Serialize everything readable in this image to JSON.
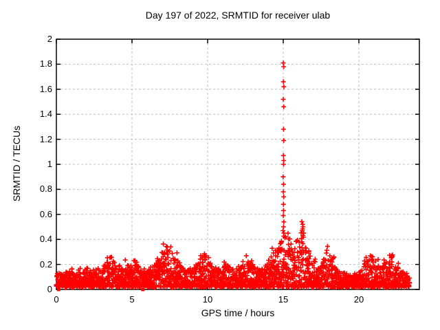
{
  "window": {
    "background": "#ffffff"
  },
  "chart_data": {
    "type": "scatter",
    "title": "Day 197 of 2022, SRMTID for receiver ulab",
    "xlabel": "GPS time / hours",
    "ylabel": "SRMTID / TECUs",
    "xlim": [
      0,
      24
    ],
    "ylim": [
      0,
      2
    ],
    "x_tick_values": [
      0,
      5,
      10,
      15,
      20
    ],
    "x_tick_labels": [
      "0",
      "5",
      "10",
      "15",
      "20"
    ],
    "y_tick_values": [
      0,
      0.2,
      0.4,
      0.6,
      0.8,
      1,
      1.2,
      1.4,
      1.6,
      1.8,
      2
    ],
    "y_tick_labels": [
      "0",
      "0.2",
      "0.4",
      "0.6",
      "0.8",
      "1",
      "1.2",
      "1.4",
      "1.6",
      "1.8",
      "2"
    ],
    "grid": true,
    "grid_style": "dashed",
    "grid_color": "#bfbfbf",
    "border_color": "#000000",
    "text_color": "#000000",
    "legend": "none",
    "series": [
      {
        "name": "srmtid-scatter",
        "marker": "plus",
        "color": "#ff0000",
        "marker_size": 7,
        "x_start": 0.0,
        "x_end": 23.35,
        "point_count": 2600,
        "seed": 197,
        "band_low": 0.02,
        "band_profile": [
          [
            0.0,
            0.13
          ],
          [
            0.3,
            0.12
          ],
          [
            0.8,
            0.15
          ],
          [
            1.2,
            0.13
          ],
          [
            1.6,
            0.17
          ],
          [
            2.0,
            0.15
          ],
          [
            2.4,
            0.13
          ],
          [
            2.8,
            0.16
          ],
          [
            3.2,
            0.2
          ],
          [
            3.6,
            0.28
          ],
          [
            3.9,
            0.2
          ],
          [
            4.2,
            0.17
          ],
          [
            4.6,
            0.2
          ],
          [
            5.0,
            0.17
          ],
          [
            5.3,
            0.23
          ],
          [
            5.6,
            0.16
          ],
          [
            5.9,
            0.14
          ],
          [
            6.2,
            0.16
          ],
          [
            6.6,
            0.22
          ],
          [
            7.0,
            0.3
          ],
          [
            7.3,
            0.37
          ],
          [
            7.6,
            0.3
          ],
          [
            8.0,
            0.24
          ],
          [
            8.4,
            0.17
          ],
          [
            8.8,
            0.16
          ],
          [
            9.2,
            0.19
          ],
          [
            9.7,
            0.27
          ],
          [
            10.0,
            0.24
          ],
          [
            10.4,
            0.18
          ],
          [
            10.8,
            0.15
          ],
          [
            11.2,
            0.2
          ],
          [
            11.6,
            0.17
          ],
          [
            12.0,
            0.16
          ],
          [
            12.4,
            0.2
          ],
          [
            12.7,
            0.26
          ],
          [
            13.0,
            0.22
          ],
          [
            13.4,
            0.16
          ],
          [
            13.8,
            0.18
          ],
          [
            14.3,
            0.3
          ],
          [
            14.7,
            0.33
          ],
          [
            14.9,
            0.4
          ],
          [
            15.1,
            0.45
          ],
          [
            15.4,
            0.4
          ],
          [
            15.7,
            0.35
          ],
          [
            16.0,
            0.36
          ],
          [
            16.3,
            0.52
          ],
          [
            16.6,
            0.35
          ],
          [
            16.9,
            0.25
          ],
          [
            17.2,
            0.2
          ],
          [
            17.5,
            0.17
          ],
          [
            17.9,
            0.32
          ],
          [
            18.2,
            0.25
          ],
          [
            18.5,
            0.2
          ],
          [
            18.8,
            0.14
          ],
          [
            19.2,
            0.12
          ],
          [
            19.6,
            0.11
          ],
          [
            20.0,
            0.14
          ],
          [
            20.4,
            0.22
          ],
          [
            20.7,
            0.32
          ],
          [
            21.0,
            0.24
          ],
          [
            21.4,
            0.18
          ],
          [
            21.8,
            0.22
          ],
          [
            22.1,
            0.3
          ],
          [
            22.4,
            0.2
          ],
          [
            22.8,
            0.16
          ],
          [
            23.1,
            0.13
          ],
          [
            23.35,
            0.12
          ]
        ],
        "outlier_points": [
          [
            15.0,
            1.81
          ],
          [
            15.03,
            1.78
          ],
          [
            15.01,
            1.66
          ],
          [
            15.04,
            1.62
          ],
          [
            15.0,
            1.52
          ],
          [
            15.03,
            1.46
          ],
          [
            15.02,
            1.28
          ],
          [
            15.03,
            1.19
          ],
          [
            15.01,
            1.07
          ],
          [
            15.03,
            1.03
          ],
          [
            15.02,
            1.0
          ],
          [
            14.99,
            0.9
          ],
          [
            15.02,
            0.84
          ],
          [
            15.0,
            0.78
          ],
          [
            15.03,
            0.74
          ],
          [
            15.01,
            0.68
          ],
          [
            15.02,
            0.63
          ],
          [
            15.0,
            0.59
          ],
          [
            15.04,
            0.54
          ],
          [
            15.02,
            0.5
          ],
          [
            14.98,
            0.47
          ],
          [
            15.05,
            0.45
          ],
          [
            16.28,
            0.52
          ],
          [
            16.31,
            0.5
          ],
          [
            16.25,
            0.47
          ],
          [
            16.35,
            0.45
          ]
        ]
      },
      {
        "name": "zero-value-points",
        "marker": "square",
        "color": "#ff0000",
        "marker_size": 5,
        "points": [
          [
            0.15,
            0
          ],
          [
            5.72,
            0
          ]
        ]
      }
    ]
  }
}
